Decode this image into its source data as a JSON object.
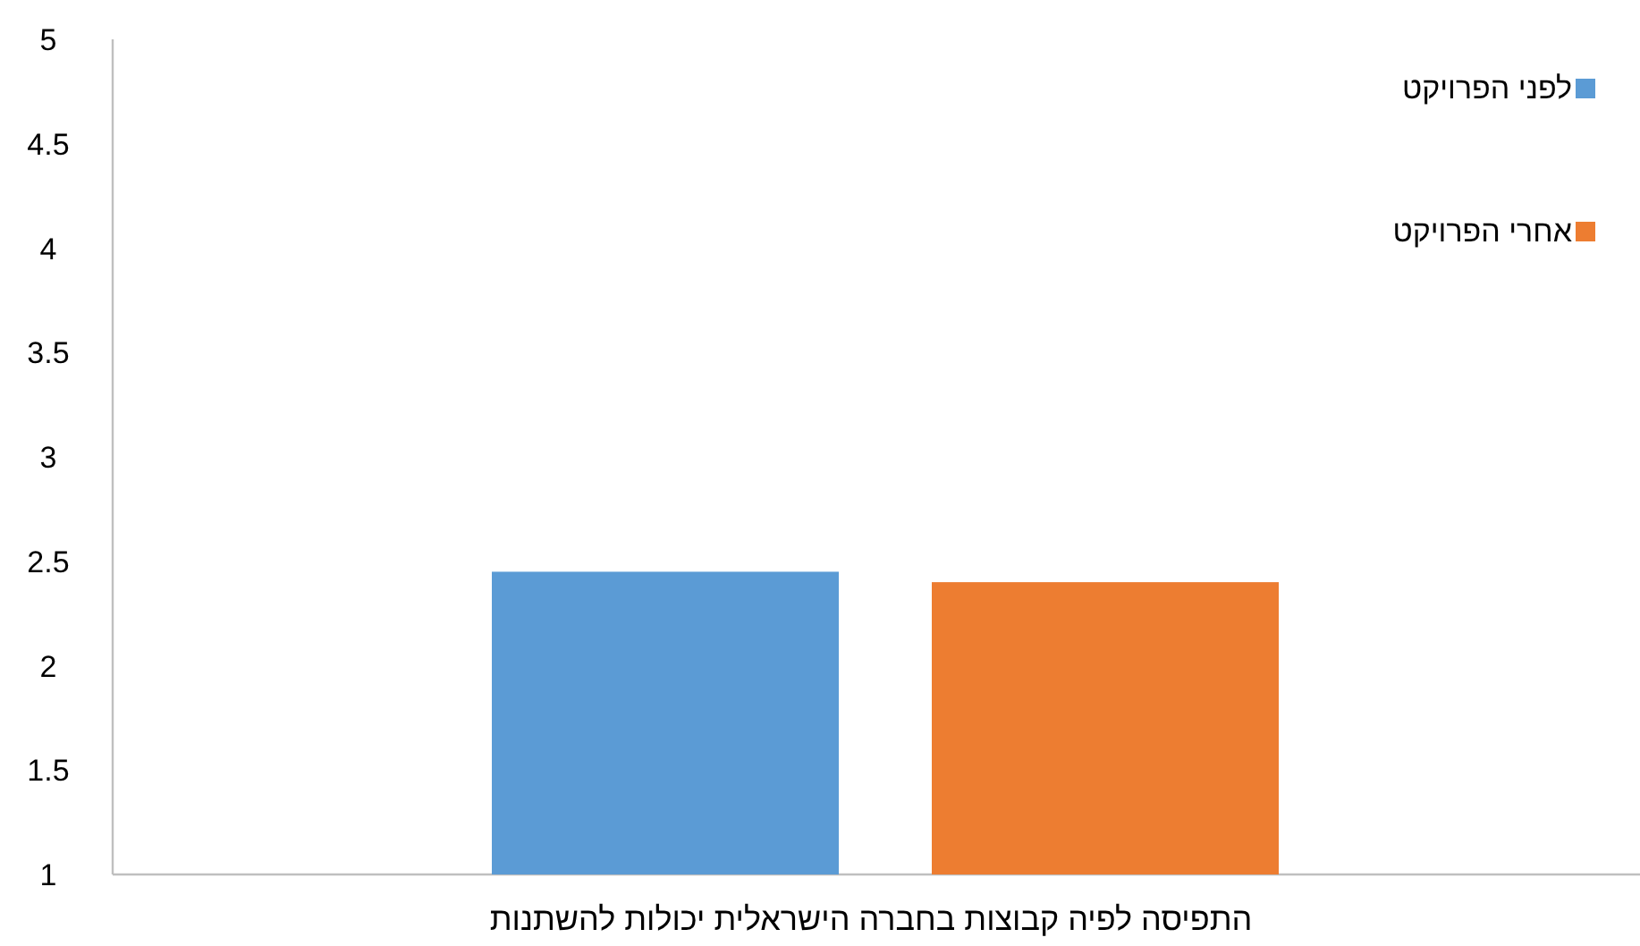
{
  "chart_data": {
    "type": "bar",
    "categories": [
      "התפיסה לפיה קבוצות בחברה הישראלית יכולות להשתנות"
    ],
    "series": [
      {
        "name": "לפני הפרויקט",
        "color": "#5b9bd5",
        "values": [
          2.45
        ]
      },
      {
        "name": "אחרי הפרויקט",
        "color": "#ed7d31",
        "values": [
          2.4
        ]
      }
    ],
    "ylim": [
      1,
      5
    ],
    "yticks": [
      1,
      1.5,
      2,
      2.5,
      3,
      3.5,
      4,
      4.5,
      5
    ],
    "legend": "top right",
    "grid": false
  }
}
